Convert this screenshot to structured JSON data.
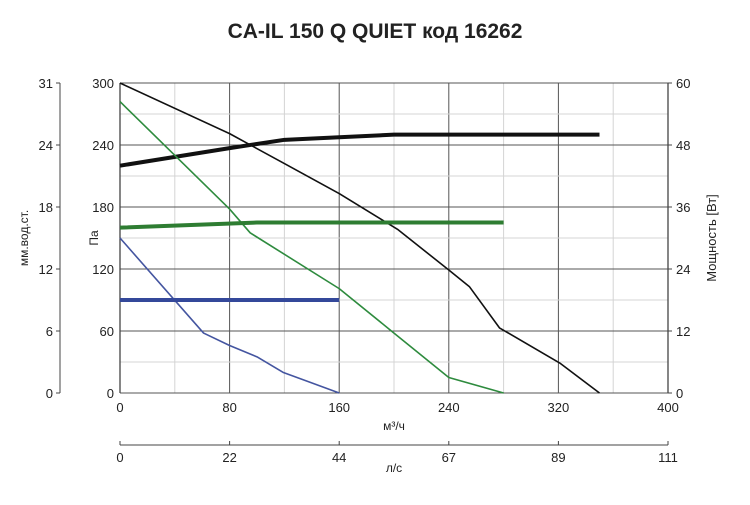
{
  "chart_data": {
    "type": "line",
    "title": "CA-IL 150 Q QUIET код 16262",
    "xlabel": "м³/ч",
    "xlabel2": "л/с",
    "ylabel_left_outer": "мм.вод.ст.",
    "ylabel_left": "Па",
    "ylabel_right": "Мощность [Вт]",
    "xlim": [
      0,
      400
    ],
    "ylim": [
      0,
      300
    ],
    "ylim_right": [
      0,
      60
    ],
    "grid": true,
    "x_ticks": [
      "0",
      "80",
      "160",
      "240",
      "320",
      "400"
    ],
    "x2_ticks": [
      "0",
      "22",
      "44",
      "67",
      "89",
      "111"
    ],
    "y_ticks": [
      "0",
      "60",
      "120",
      "180",
      "240",
      "300"
    ],
    "y_outer_ticks": [
      "0",
      "6",
      "12",
      "18",
      "24",
      "31"
    ],
    "y_right_ticks": [
      "0",
      "12",
      "24",
      "36",
      "48",
      "60"
    ],
    "series": [
      {
        "kind": "pressure",
        "axis": "left",
        "color": "#111111",
        "x": [
          0,
          80,
          120,
          160,
          203,
          240,
          255,
          277,
          321,
          350
        ],
        "y": [
          300,
          251,
          222,
          193,
          158,
          119,
          103,
          63,
          29,
          0
        ]
      },
      {
        "kind": "power",
        "axis": "right",
        "color": "#111111",
        "x": [
          0,
          80,
          120,
          160,
          200,
          350
        ],
        "y": [
          44,
          47.4,
          49,
          49.5,
          50,
          50
        ]
      },
      {
        "kind": "pressure",
        "axis": "left",
        "color": "#2e8b3e",
        "x": [
          0,
          80,
          95,
          160,
          200,
          240,
          280
        ],
        "y": [
          282,
          178,
          155,
          101,
          58,
          15,
          0
        ]
      },
      {
        "kind": "power",
        "axis": "right",
        "color": "#2e7d32",
        "x": [
          0,
          100,
          280
        ],
        "y": [
          32,
          33,
          33
        ]
      },
      {
        "kind": "pressure",
        "axis": "left",
        "color": "#4455a0",
        "x": [
          0,
          61,
          80,
          100,
          119,
          160
        ],
        "y": [
          150,
          58,
          46,
          35,
          20,
          0
        ]
      },
      {
        "kind": "power",
        "axis": "right",
        "color": "#34489a",
        "x": [
          0,
          160
        ],
        "y": [
          18,
          18
        ]
      }
    ]
  }
}
